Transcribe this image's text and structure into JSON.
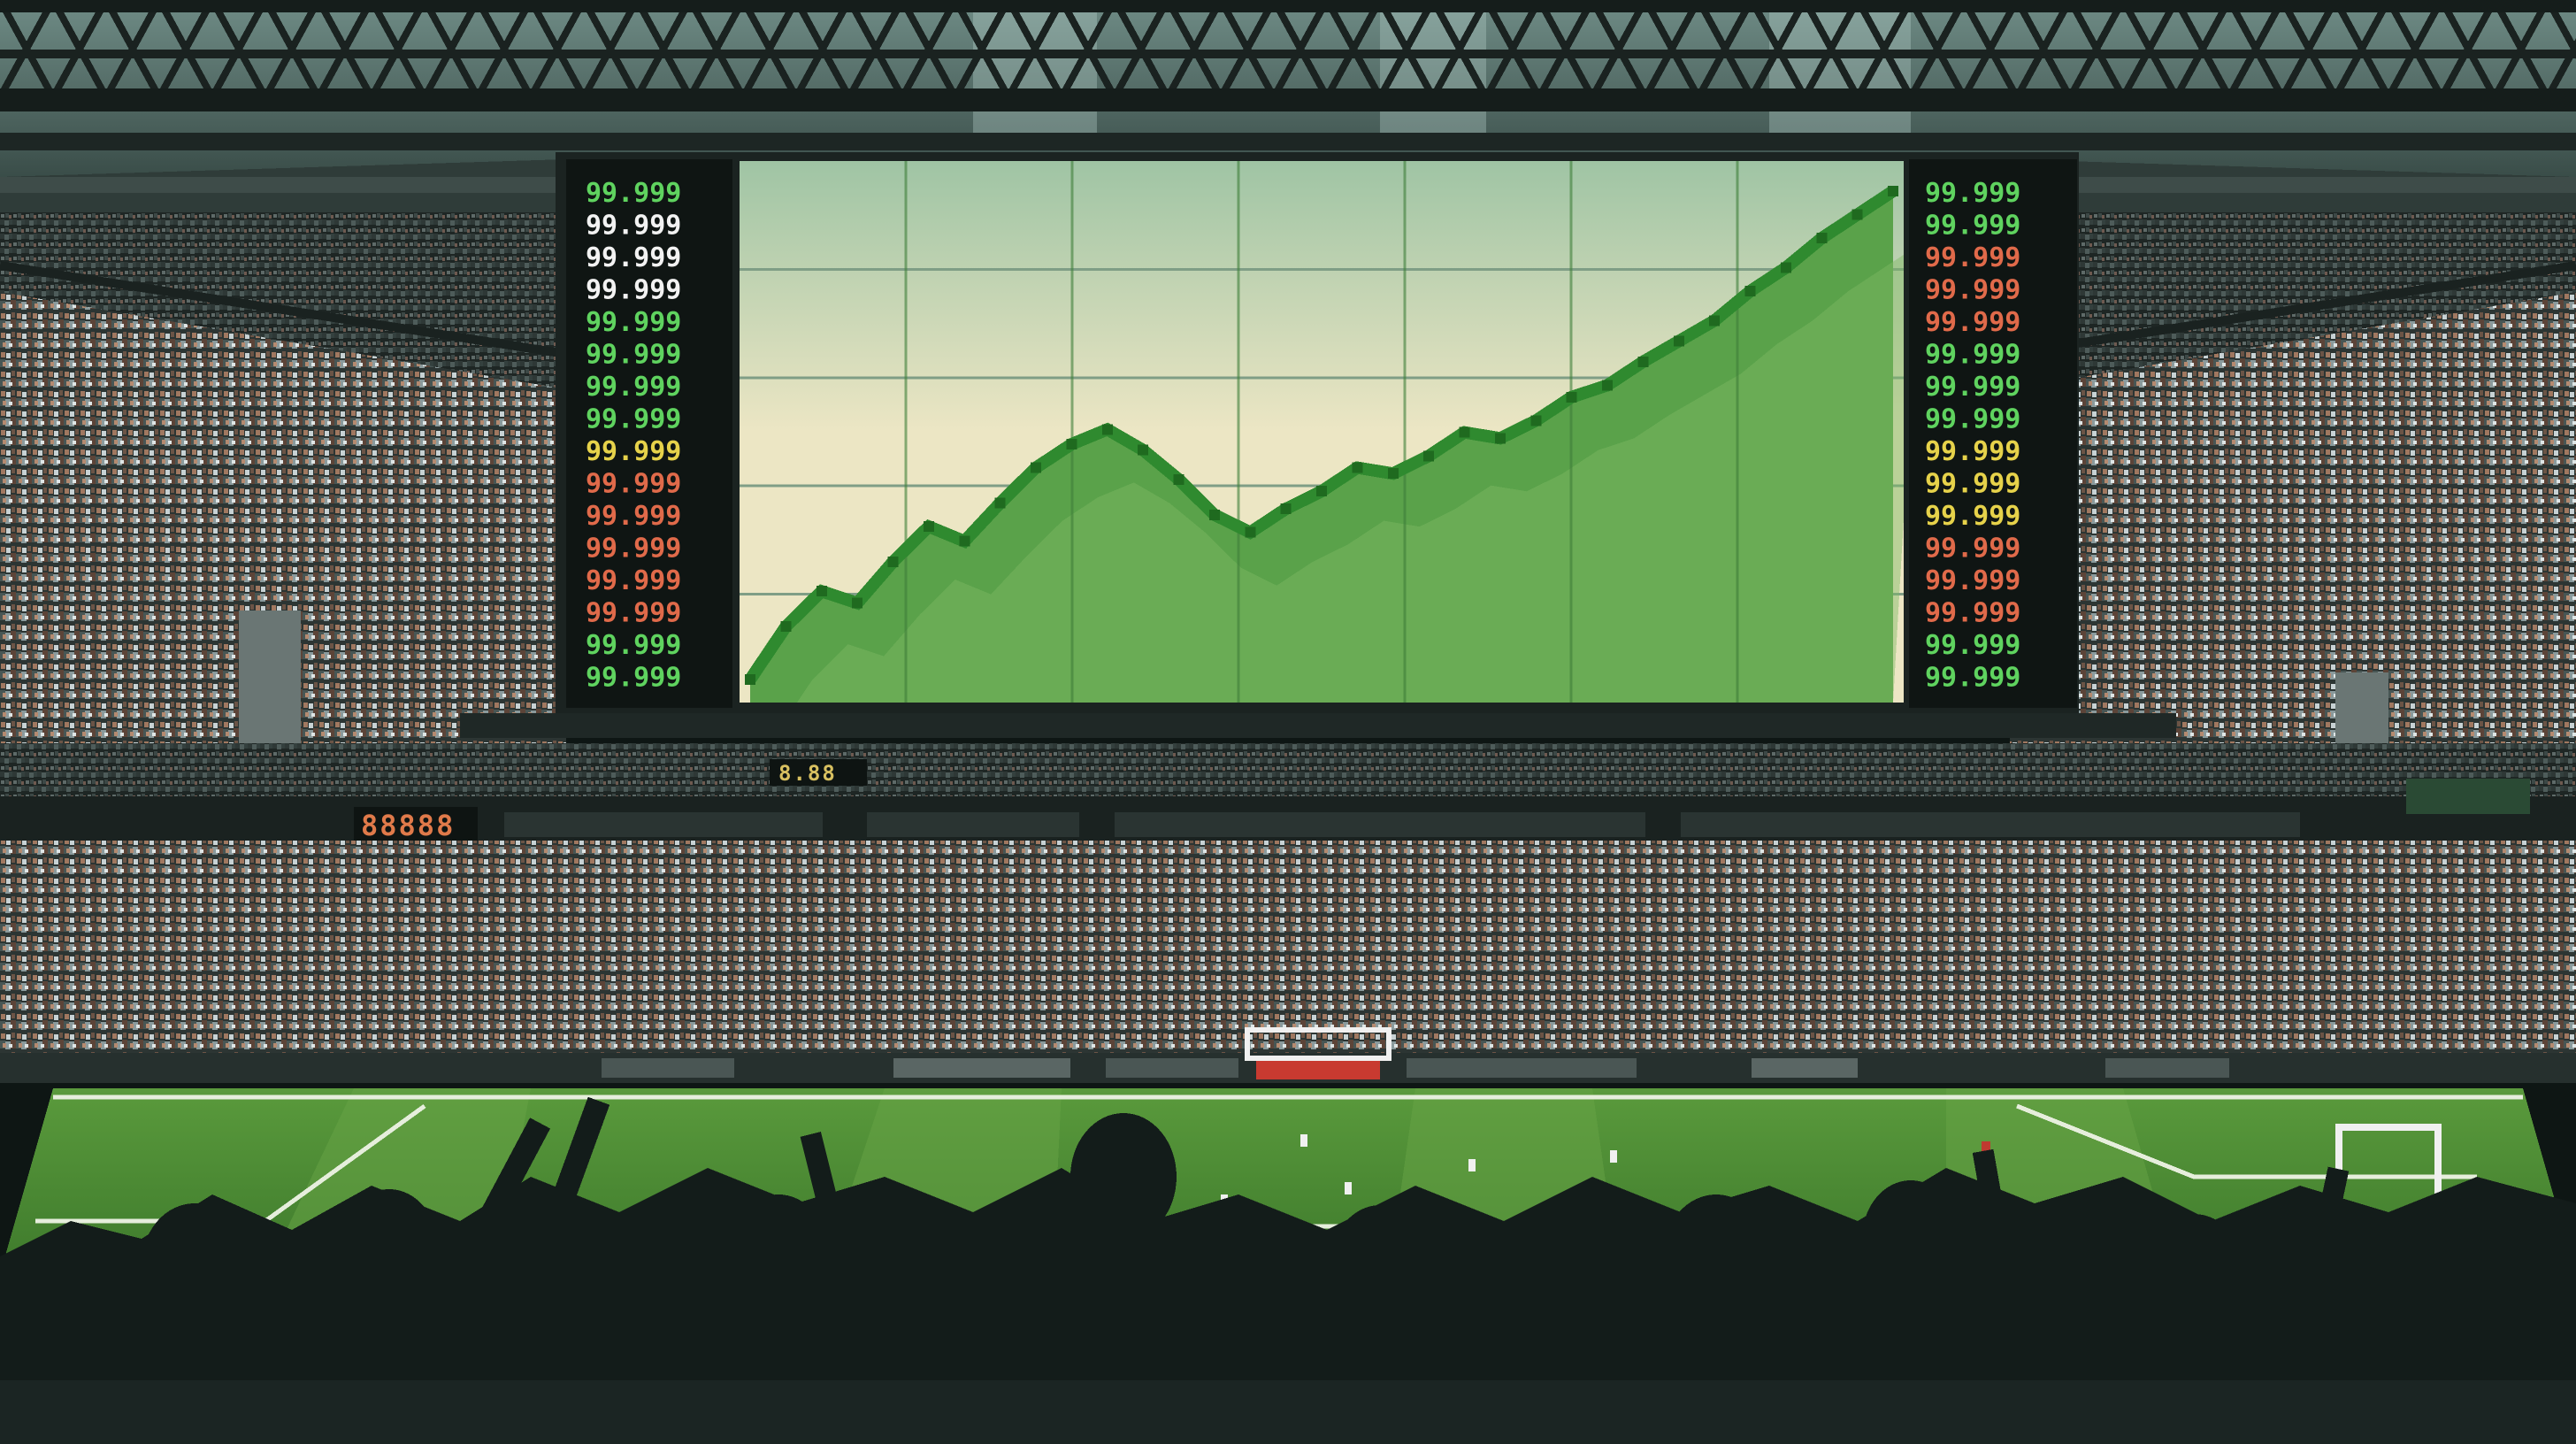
{
  "scene": {
    "subject": "pixel-art-stadium-scoreboard"
  },
  "scoreboard": {
    "left_ticker_rows": [
      {
        "text": "99.999",
        "color": "#5fd35f"
      },
      {
        "text": "99.999",
        "color": "#f2f2f2"
      },
      {
        "text": "99.999",
        "color": "#f2f2f2"
      },
      {
        "text": "99.999",
        "color": "#f2f2f2"
      },
      {
        "text": "99.999",
        "color": "#5fd35f"
      },
      {
        "text": "99.999",
        "color": "#5fd35f"
      },
      {
        "text": "99.999",
        "color": "#5fd35f"
      },
      {
        "text": "99.999",
        "color": "#5fd35f"
      },
      {
        "text": "99.999",
        "color": "#e6d24a"
      },
      {
        "text": "99.999",
        "color": "#e06a4a"
      },
      {
        "text": "99.999",
        "color": "#e06a4a"
      },
      {
        "text": "99.999",
        "color": "#e06a4a"
      },
      {
        "text": "99.999",
        "color": "#e06a4a"
      },
      {
        "text": "99.999",
        "color": "#e06a4a"
      },
      {
        "text": "99.999",
        "color": "#5fd35f"
      },
      {
        "text": "99.999",
        "color": "#5fd35f"
      }
    ],
    "right_ticker_rows": [
      {
        "text": "99.999",
        "color": "#5fd35f"
      },
      {
        "text": "99.999",
        "color": "#5fd35f"
      },
      {
        "text": "99.999",
        "color": "#e06a4a"
      },
      {
        "text": "99.999",
        "color": "#e06a4a"
      },
      {
        "text": "99.999",
        "color": "#e06a4a"
      },
      {
        "text": "99.999",
        "color": "#5fd35f"
      },
      {
        "text": "99.999",
        "color": "#5fd35f"
      },
      {
        "text": "99.999",
        "color": "#5fd35f"
      },
      {
        "text": "99.999",
        "color": "#e6d24a"
      },
      {
        "text": "99.999",
        "color": "#e6d24a"
      },
      {
        "text": "99.999",
        "color": "#e6d24a"
      },
      {
        "text": "99.999",
        "color": "#e06a4a"
      },
      {
        "text": "99.999",
        "color": "#e06a4a"
      },
      {
        "text": "99.999",
        "color": "#e06a4a"
      },
      {
        "text": "99.999",
        "color": "#5fd35f"
      },
      {
        "text": "99.999",
        "color": "#5fd35f"
      }
    ],
    "chart": {
      "type": "area",
      "values": [
        0,
        18,
        30,
        26,
        40,
        52,
        47,
        60,
        72,
        80,
        85,
        78,
        68,
        56,
        50,
        58,
        64,
        72,
        70,
        76,
        84,
        82,
        88,
        96,
        100,
        108,
        115,
        122,
        132,
        140,
        150,
        158,
        166
      ],
      "grid": true
    },
    "lower_left_display": "88888",
    "lower_center_display": "8.88"
  },
  "colors": {
    "screen_sky_top": "#a8c8a8",
    "screen_sky_bottom": "#ece6c4",
    "chart_fill": "#5aa24a",
    "chart_fill_light": "#7fb864",
    "chart_line": "#2f8a2f",
    "pitch": "#5f9a3e",
    "pitch_stripe": "#6aa646",
    "truss": "#1f2826",
    "silhouette": "#0f1715"
  },
  "icons": [
    "stadium-truss",
    "goal-post",
    "crowd-silhouette"
  ]
}
